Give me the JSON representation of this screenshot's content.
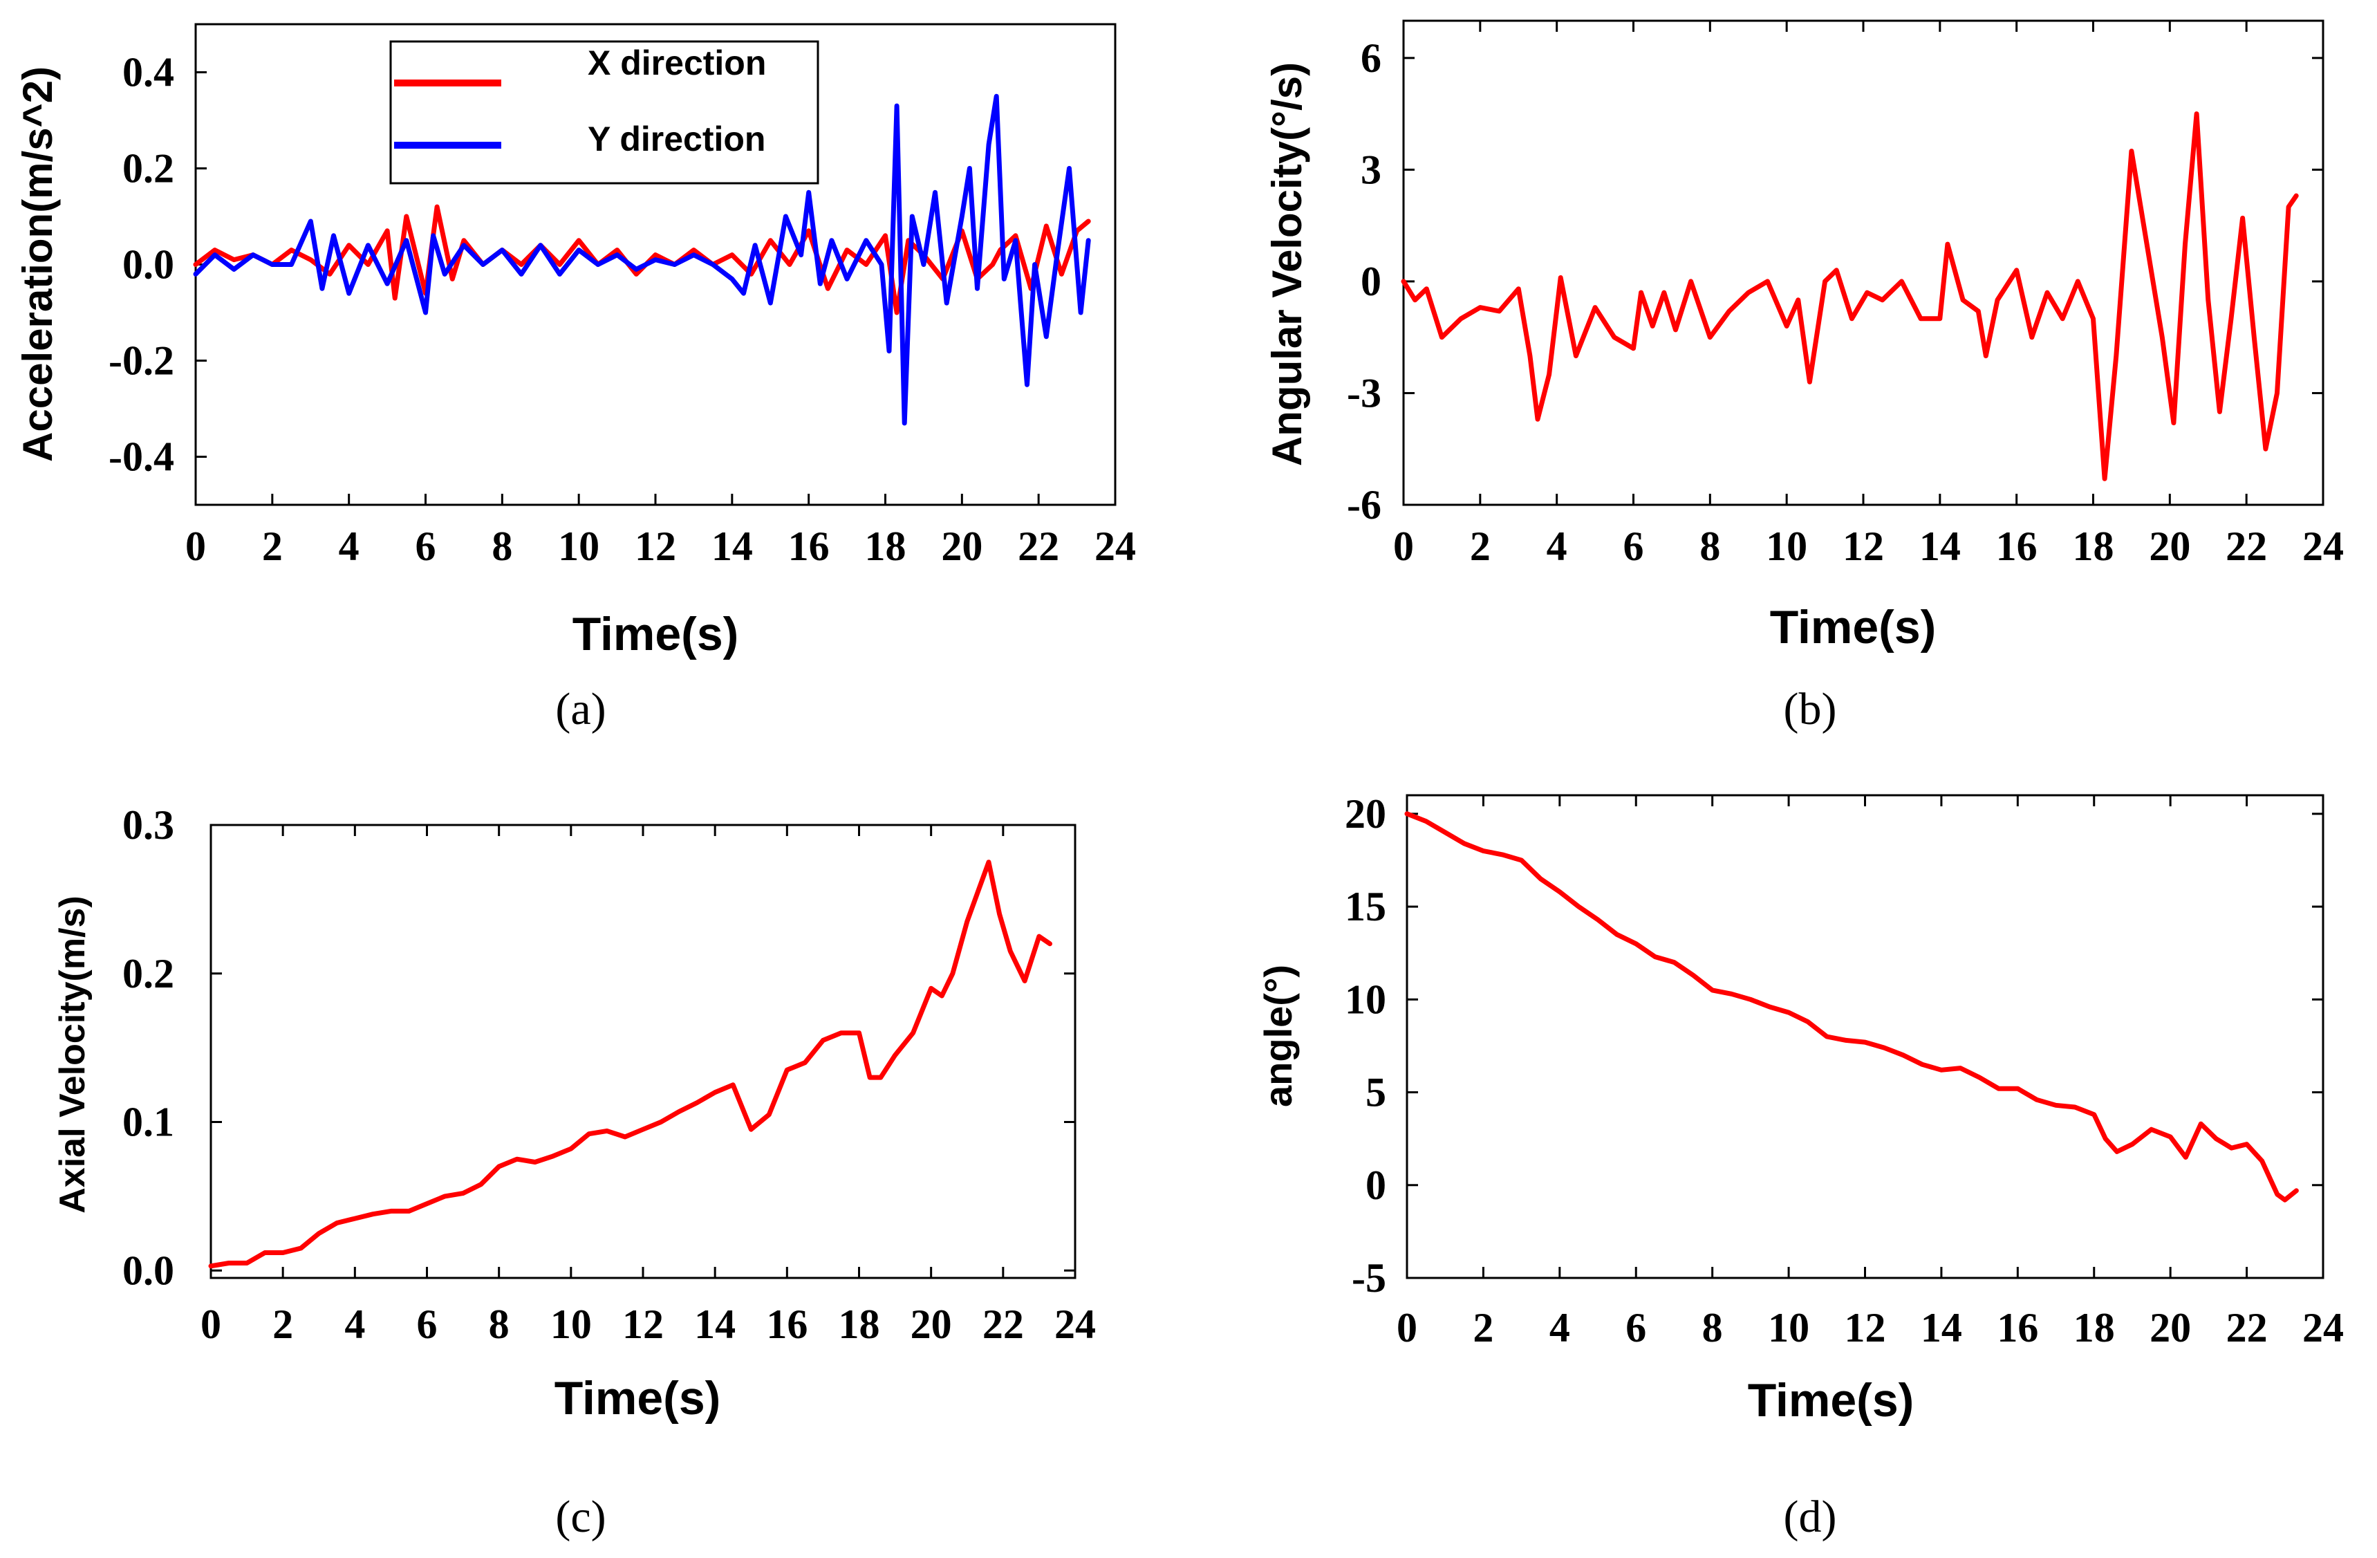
{
  "chart_data": [
    {
      "id": "a",
      "type": "line",
      "caption": "(a)",
      "xlabel": "Time(s)",
      "ylabel": "Acceleration(m/s^2)",
      "xlim": [
        0,
        24
      ],
      "ylim": [
        -0.5,
        0.5
      ],
      "xticks": [
        0,
        2,
        4,
        6,
        8,
        10,
        12,
        14,
        16,
        18,
        20,
        22,
        24
      ],
      "xtick_labels": [
        "0",
        "2",
        "4",
        "6",
        "8",
        "10",
        "12",
        "14",
        "16",
        "18",
        "20",
        "22",
        "24"
      ],
      "yticks": [
        0.4,
        0.2,
        0.0,
        -0.2,
        -0.4
      ],
      "ytick_labels": [
        "0.4",
        "0.2",
        "0.0",
        "-0.2",
        "-0.4"
      ],
      "legend": {
        "placement": "top-center"
      },
      "series": [
        {
          "name": "X direction",
          "color": "#ff0000",
          "x": [
            0,
            0.5,
            1,
            1.5,
            2,
            2.5,
            3,
            3.5,
            4,
            4.5,
            5,
            5.2,
            5.5,
            6,
            6.3,
            6.7,
            7,
            7.5,
            8,
            8.5,
            9,
            9.5,
            10,
            10.5,
            11,
            11.5,
            12,
            12.5,
            13,
            13.5,
            14,
            14.5,
            15,
            15.5,
            16,
            16.5,
            17,
            17.5,
            18,
            18.3,
            18.6,
            19,
            19.5,
            20,
            20.4,
            20.8,
            21,
            21.4,
            21.8,
            22.2,
            22.6,
            23,
            23.3
          ],
          "values": [
            0.0,
            0.03,
            0.01,
            0.02,
            0.0,
            0.03,
            0.01,
            -0.02,
            0.04,
            0.0,
            0.07,
            -0.07,
            0.1,
            -0.06,
            0.12,
            -0.03,
            0.05,
            0.0,
            0.03,
            0.0,
            0.04,
            0.0,
            0.05,
            0.0,
            0.03,
            -0.02,
            0.02,
            0.0,
            0.03,
            0.0,
            0.02,
            -0.02,
            0.05,
            0.0,
            0.07,
            -0.05,
            0.03,
            0.0,
            0.06,
            -0.1,
            0.05,
            0.02,
            -0.03,
            0.07,
            -0.03,
            0.0,
            0.03,
            0.06,
            -0.05,
            0.08,
            -0.02,
            0.07,
            0.09
          ]
        },
        {
          "name": "Y direction",
          "color": "#0000ff",
          "x": [
            0,
            0.5,
            1,
            1.5,
            2,
            2.5,
            3,
            3.3,
            3.6,
            4,
            4.5,
            5,
            5.5,
            6,
            6.2,
            6.5,
            7,
            7.5,
            8,
            8.5,
            9,
            9.5,
            10,
            10.5,
            11,
            11.5,
            12,
            12.5,
            13,
            13.5,
            14,
            14.3,
            14.6,
            15,
            15.4,
            15.8,
            16,
            16.3,
            16.6,
            17,
            17.5,
            17.9,
            18.1,
            18.3,
            18.5,
            18.7,
            19,
            19.3,
            19.6,
            20,
            20.2,
            20.4,
            20.7,
            20.9,
            21.1,
            21.4,
            21.7,
            21.9,
            22.2,
            22.5,
            22.8,
            23.1,
            23.3
          ],
          "values": [
            -0.02,
            0.02,
            -0.01,
            0.02,
            0.0,
            0.0,
            0.09,
            -0.05,
            0.06,
            -0.06,
            0.04,
            -0.04,
            0.05,
            -0.1,
            0.06,
            -0.02,
            0.04,
            0.0,
            0.03,
            -0.02,
            0.04,
            -0.02,
            0.03,
            0.0,
            0.02,
            -0.01,
            0.01,
            0.0,
            0.02,
            0.0,
            -0.03,
            -0.06,
            0.04,
            -0.08,
            0.1,
            0.02,
            0.15,
            -0.04,
            0.05,
            -0.03,
            0.05,
            0.0,
            -0.18,
            0.33,
            -0.33,
            0.1,
            0.0,
            0.15,
            -0.08,
            0.1,
            0.2,
            -0.05,
            0.25,
            0.35,
            -0.03,
            0.05,
            -0.25,
            0.0,
            -0.15,
            0.03,
            0.2,
            -0.1,
            0.05
          ]
        }
      ]
    },
    {
      "id": "b",
      "type": "line",
      "caption": "(b)",
      "xlabel": "Time(s)",
      "ylabel": "Angular Velocity(°/s)",
      "xlim": [
        0,
        24
      ],
      "ylim": [
        -6,
        7
      ],
      "xticks": [
        0,
        2,
        4,
        6,
        8,
        10,
        12,
        14,
        16,
        18,
        20,
        22,
        24
      ],
      "xtick_labels": [
        "0",
        "2",
        "4",
        "6",
        "8",
        "10",
        "12",
        "14",
        "16",
        "18",
        "20",
        "22",
        "24"
      ],
      "yticks": [
        6,
        3,
        0,
        -3,
        -6
      ],
      "ytick_labels": [
        "6",
        "3",
        "0",
        "-3",
        "-6"
      ],
      "series": [
        {
          "name": "Angular velocity",
          "color": "#ff0000",
          "x": [
            0,
            0.3,
            0.6,
            1,
            1.5,
            2,
            2.5,
            3,
            3.3,
            3.5,
            3.8,
            4.1,
            4.5,
            5,
            5.5,
            6,
            6.2,
            6.5,
            6.8,
            7.1,
            7.5,
            8,
            8.5,
            9,
            9.5,
            10,
            10.3,
            10.6,
            11,
            11.3,
            11.7,
            12.1,
            12.5,
            13,
            13.5,
            14,
            14.2,
            14.6,
            15,
            15.2,
            15.5,
            16,
            16.4,
            16.8,
            17.2,
            17.6,
            18,
            18.3,
            18.6,
            19,
            19.4,
            19.8,
            20.1,
            20.4,
            20.7,
            21,
            21.3,
            21.6,
            21.9,
            22.2,
            22.5,
            22.8,
            23.1,
            23.3
          ],
          "values": [
            0,
            -0.5,
            -0.2,
            -1.5,
            -1.0,
            -0.7,
            -0.8,
            -0.2,
            -2.0,
            -3.7,
            -2.5,
            0.1,
            -2.0,
            -0.7,
            -1.5,
            -1.8,
            -0.3,
            -1.2,
            -0.3,
            -1.3,
            0.0,
            -1.5,
            -0.8,
            -0.3,
            0.0,
            -1.2,
            -0.5,
            -2.7,
            0.0,
            0.3,
            -1.0,
            -0.3,
            -0.5,
            0.0,
            -1.0,
            -1.0,
            1.0,
            -0.5,
            -0.8,
            -2.0,
            -0.5,
            0.3,
            -1.5,
            -0.3,
            -1.0,
            0.0,
            -1.0,
            -5.3,
            -2.0,
            3.5,
            1.0,
            -1.5,
            -3.8,
            1.0,
            4.5,
            -0.5,
            -3.5,
            -1.0,
            1.7,
            -1.5,
            -4.5,
            -3.0,
            2.0,
            2.3
          ]
        }
      ]
    },
    {
      "id": "c",
      "type": "line",
      "caption": "(c)",
      "xlabel": "Time(s)",
      "ylabel": "Axial Velocity(m/s)",
      "xlim": [
        0,
        24
      ],
      "ylim": [
        -0.005,
        0.3
      ],
      "xticks": [
        0,
        2,
        4,
        6,
        8,
        10,
        12,
        14,
        16,
        18,
        20,
        22,
        24
      ],
      "xtick_labels": [
        "0",
        "2",
        "4",
        "6",
        "8",
        "10",
        "12",
        "14",
        "16",
        "18",
        "20",
        "22",
        "24"
      ],
      "yticks": [
        0.3,
        0.2,
        0.1,
        0.0
      ],
      "ytick_labels": [
        "0.3",
        "0.2",
        "0.1",
        "0.0"
      ],
      "series": [
        {
          "name": "Axial velocity",
          "color": "#ff0000",
          "x": [
            0,
            0.5,
            1,
            1.5,
            2,
            2.5,
            3,
            3.5,
            4,
            4.5,
            5,
            5.5,
            6,
            6.5,
            7,
            7.5,
            8,
            8.5,
            9,
            9.5,
            10,
            10.5,
            11,
            11.5,
            12,
            12.5,
            13,
            13.5,
            14,
            14.5,
            15,
            15.5,
            16,
            16.5,
            17,
            17.5,
            18,
            18.3,
            18.6,
            19,
            19.5,
            20,
            20.3,
            20.6,
            21,
            21.3,
            21.6,
            21.9,
            22.2,
            22.6,
            23,
            23.3
          ],
          "values": [
            0.003,
            0.005,
            0.005,
            0.012,
            0.012,
            0.015,
            0.025,
            0.032,
            0.035,
            0.038,
            0.04,
            0.04,
            0.045,
            0.05,
            0.052,
            0.058,
            0.07,
            0.075,
            0.073,
            0.077,
            0.082,
            0.092,
            0.094,
            0.09,
            0.095,
            0.1,
            0.107,
            0.113,
            0.12,
            0.125,
            0.095,
            0.105,
            0.135,
            0.14,
            0.155,
            0.16,
            0.16,
            0.13,
            0.13,
            0.145,
            0.16,
            0.19,
            0.185,
            0.2,
            0.235,
            0.255,
            0.275,
            0.24,
            0.215,
            0.195,
            0.225,
            0.22
          ]
        }
      ]
    },
    {
      "id": "d",
      "type": "line",
      "caption": "(d)",
      "xlabel": "Time(s)",
      "ylabel": "angle(°)",
      "xlim": [
        0,
        24
      ],
      "ylim": [
        -5,
        21
      ],
      "xticks": [
        0,
        2,
        4,
        6,
        8,
        10,
        12,
        14,
        16,
        18,
        20,
        22,
        24
      ],
      "xtick_labels": [
        "0",
        "2",
        "4",
        "6",
        "8",
        "10",
        "12",
        "14",
        "16",
        "18",
        "20",
        "22",
        "24"
      ],
      "yticks": [
        20,
        15,
        10,
        5,
        0,
        -5
      ],
      "ytick_labels": [
        "20",
        "15",
        "10",
        "5",
        "0",
        "-5"
      ],
      "series": [
        {
          "name": "Angle",
          "color": "#ff0000",
          "x": [
            0,
            0.5,
            1,
            1.5,
            2,
            2.5,
            3,
            3.5,
            4,
            4.5,
            5,
            5.5,
            6,
            6.5,
            7,
            7.5,
            8,
            8.5,
            9,
            9.5,
            10,
            10.5,
            11,
            11.5,
            12,
            12.5,
            13,
            13.5,
            14,
            14.5,
            15,
            15.5,
            16,
            16.5,
            17,
            17.5,
            18,
            18.3,
            18.6,
            19,
            19.5,
            20,
            20.4,
            20.8,
            21.2,
            21.6,
            22,
            22.4,
            22.8,
            23,
            23.3
          ],
          "values": [
            20,
            19.6,
            19,
            18.4,
            18,
            17.8,
            17.5,
            16.5,
            15.8,
            15.0,
            14.3,
            13.5,
            13.0,
            12.3,
            12.0,
            11.3,
            10.5,
            10.3,
            10.0,
            9.6,
            9.3,
            8.8,
            8.0,
            7.8,
            7.7,
            7.4,
            7.0,
            6.5,
            6.2,
            6.3,
            5.8,
            5.2,
            5.2,
            4.6,
            4.3,
            4.2,
            3.8,
            2.5,
            1.8,
            2.2,
            3.0,
            2.6,
            1.5,
            3.3,
            2.5,
            2.0,
            2.2,
            1.3,
            -0.5,
            -0.8,
            -0.3
          ]
        }
      ]
    }
  ]
}
